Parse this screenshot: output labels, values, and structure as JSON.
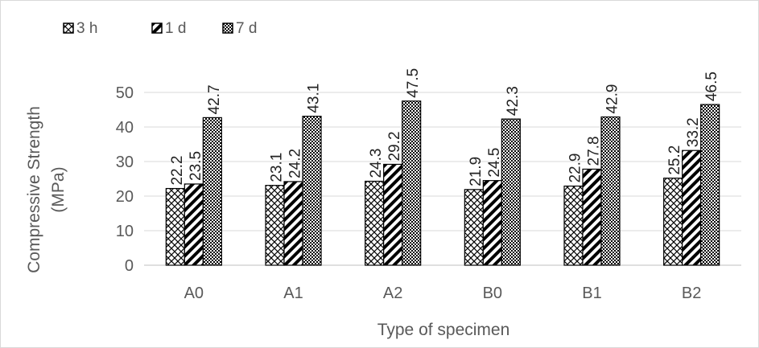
{
  "chart_data": {
    "type": "bar",
    "categories": [
      "A0",
      "A1",
      "A2",
      "B0",
      "B1",
      "B2"
    ],
    "series": [
      {
        "name": "3 h",
        "values": [
          22.2,
          23.1,
          24.3,
          21.9,
          22.9,
          25.2
        ],
        "pattern": "crosshatch"
      },
      {
        "name": "1 d",
        "values": [
          23.5,
          24.2,
          29.2,
          24.5,
          27.8,
          33.2
        ],
        "pattern": "diagonal-stripes"
      },
      {
        "name": "7 d",
        "values": [
          42.7,
          43.1,
          47.5,
          42.3,
          42.9,
          46.5
        ],
        "pattern": "checker"
      }
    ],
    "xlabel": "Type of specimen",
    "ylabel_lines": [
      "Compressive Strength",
      "(MPa)"
    ],
    "ylim": [
      0,
      50
    ],
    "yticks": [
      0,
      10,
      20,
      30,
      40,
      50
    ],
    "grid": true,
    "legend_position": "top-left",
    "colors": {
      "gridline": "#d9d9d9",
      "axis": "#bfbfbf",
      "bar_fill": "#000000"
    }
  }
}
